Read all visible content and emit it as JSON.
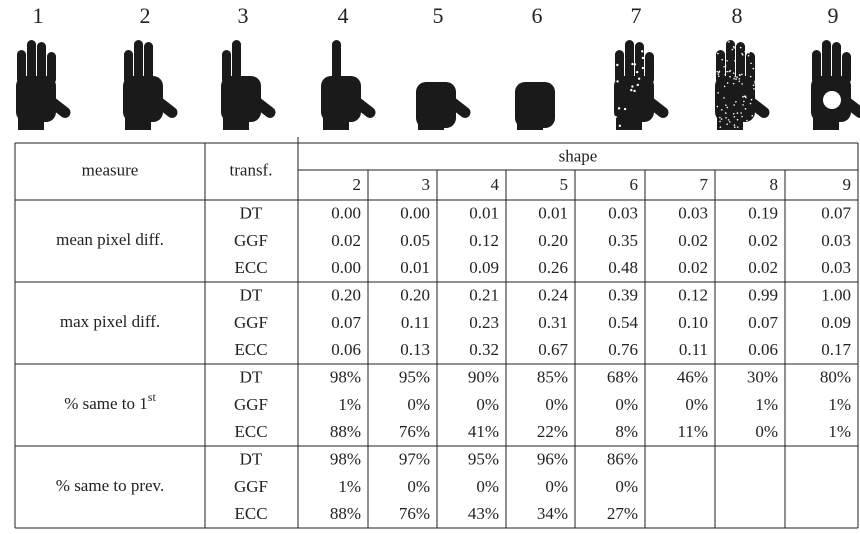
{
  "figure": {
    "labels": [
      "1",
      "2",
      "3",
      "4",
      "5",
      "6",
      "7",
      "8",
      "9"
    ]
  },
  "table": {
    "header": {
      "measure": "measure",
      "transform": "transf.",
      "shape": "shape",
      "shapes": [
        "2",
        "3",
        "4",
        "5",
        "6",
        "7",
        "8",
        "9"
      ]
    },
    "groups": [
      {
        "measure": {
          "text": "mean pixel diff."
        },
        "rows": [
          {
            "transform": "DT",
            "values": [
              "0.00",
              "0.00",
              "0.01",
              "0.01",
              "0.03",
              "0.03",
              "0.19",
              "0.07"
            ]
          },
          {
            "transform": "GGF",
            "values": [
              "0.02",
              "0.05",
              "0.12",
              "0.20",
              "0.35",
              "0.02",
              "0.02",
              "0.03"
            ]
          },
          {
            "transform": "ECC",
            "values": [
              "0.00",
              "0.01",
              "0.09",
              "0.26",
              "0.48",
              "0.02",
              "0.02",
              "0.03"
            ]
          }
        ]
      },
      {
        "measure": {
          "text": "max pixel diff."
        },
        "rows": [
          {
            "transform": "DT",
            "values": [
              "0.20",
              "0.20",
              "0.21",
              "0.24",
              "0.39",
              "0.12",
              "0.99",
              "1.00"
            ]
          },
          {
            "transform": "GGF",
            "values": [
              "0.07",
              "0.11",
              "0.23",
              "0.31",
              "0.54",
              "0.10",
              "0.07",
              "0.09"
            ]
          },
          {
            "transform": "ECC",
            "values": [
              "0.06",
              "0.13",
              "0.32",
              "0.67",
              "0.76",
              "0.11",
              "0.06",
              "0.17"
            ]
          }
        ]
      },
      {
        "measure": {
          "text": "% same to 1",
          "sup": "st"
        },
        "rows": [
          {
            "transform": "DT",
            "values": [
              "98%",
              "95%",
              "90%",
              "85%",
              "68%",
              "46%",
              "30%",
              "80%"
            ]
          },
          {
            "transform": "GGF",
            "values": [
              "1%",
              "0%",
              "0%",
              "0%",
              "0%",
              "0%",
              "1%",
              "1%"
            ]
          },
          {
            "transform": "ECC",
            "values": [
              "88%",
              "76%",
              "41%",
              "22%",
              "8%",
              "11%",
              "0%",
              "1%"
            ]
          }
        ]
      },
      {
        "measure": {
          "text": "% same to prev."
        },
        "rows": [
          {
            "transform": "DT",
            "values": [
              "98%",
              "97%",
              "95%",
              "96%",
              "86%"
            ]
          },
          {
            "transform": "GGF",
            "values": [
              "1%",
              "0%",
              "0%",
              "0%",
              "0%"
            ]
          },
          {
            "transform": "ECC",
            "values": [
              "88%",
              "76%",
              "43%",
              "34%",
              "27%"
            ]
          }
        ]
      }
    ]
  }
}
